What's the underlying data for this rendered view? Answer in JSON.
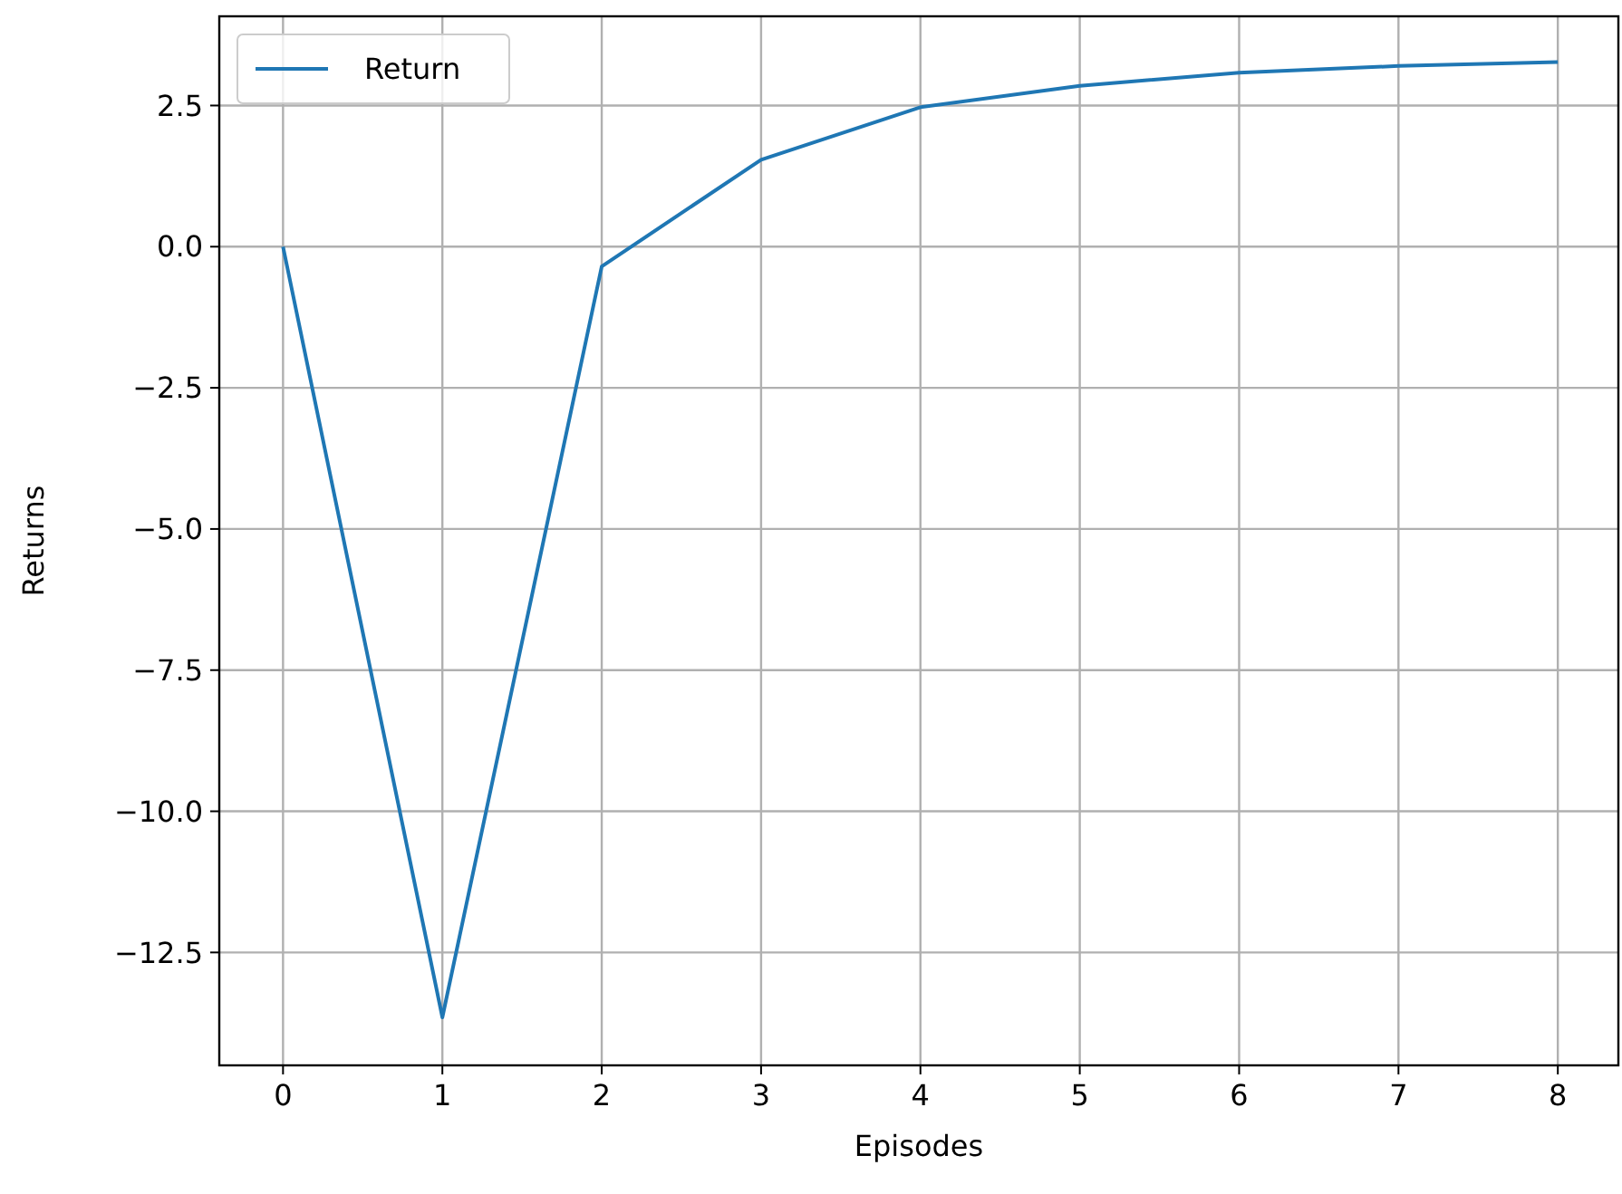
{
  "chart_data": {
    "type": "line",
    "xlabel": "Episodes",
    "ylabel": "Returns",
    "x": [
      0,
      1,
      2,
      3,
      4,
      5,
      6,
      7,
      8
    ],
    "series": [
      {
        "name": "Return",
        "color": "#1f77b4",
        "values": [
          0,
          -13.65,
          -0.35,
          1.54,
          2.47,
          2.85,
          3.08,
          3.2,
          3.27
        ]
      }
    ],
    "xlim": [
      -0.4,
      8.38
    ],
    "xticks": [
      0,
      1,
      2,
      3,
      4,
      5,
      6,
      7,
      8
    ],
    "ylim": [
      -14.5,
      4.08
    ],
    "yticks": [
      {
        "value": -12.5,
        "label": "−12.5"
      },
      {
        "value": -10,
        "label": "−10.0"
      },
      {
        "value": -7.5,
        "label": "−7.5"
      },
      {
        "value": -5,
        "label": "−5.0"
      },
      {
        "value": -2.5,
        "label": "−2.5"
      },
      {
        "value": 0,
        "label": "0.0"
      },
      {
        "value": 2.5,
        "label": "2.5"
      }
    ],
    "grid": true,
    "legend": "top left"
  }
}
